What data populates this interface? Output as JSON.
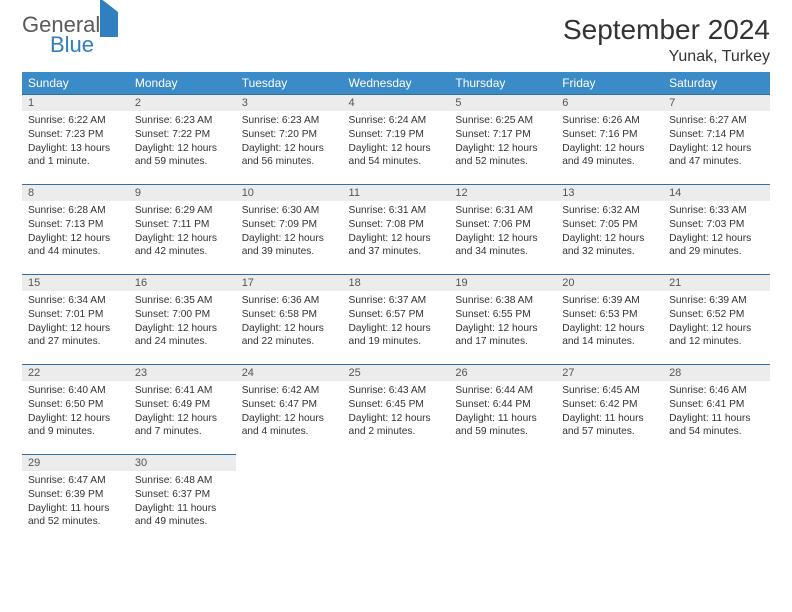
{
  "brand": {
    "part1": "General",
    "part2": "Blue",
    "part1_color": "#5a5a5a",
    "part2_color": "#2f7fc1"
  },
  "title": "September 2024",
  "location": "Yunak, Turkey",
  "colors": {
    "header_bg": "#3b8bc8",
    "header_fg": "#ffffff",
    "daynum_bg": "#ececec",
    "cell_border": "#2f6fa8"
  },
  "weekdays": [
    "Sunday",
    "Monday",
    "Tuesday",
    "Wednesday",
    "Thursday",
    "Friday",
    "Saturday"
  ],
  "weeks": [
    [
      {
        "day": "1",
        "sunrise": "6:22 AM",
        "sunset": "7:23 PM",
        "daylight": "13 hours and 1 minute."
      },
      {
        "day": "2",
        "sunrise": "6:23 AM",
        "sunset": "7:22 PM",
        "daylight": "12 hours and 59 minutes."
      },
      {
        "day": "3",
        "sunrise": "6:23 AM",
        "sunset": "7:20 PM",
        "daylight": "12 hours and 56 minutes."
      },
      {
        "day": "4",
        "sunrise": "6:24 AM",
        "sunset": "7:19 PM",
        "daylight": "12 hours and 54 minutes."
      },
      {
        "day": "5",
        "sunrise": "6:25 AM",
        "sunset": "7:17 PM",
        "daylight": "12 hours and 52 minutes."
      },
      {
        "day": "6",
        "sunrise": "6:26 AM",
        "sunset": "7:16 PM",
        "daylight": "12 hours and 49 minutes."
      },
      {
        "day": "7",
        "sunrise": "6:27 AM",
        "sunset": "7:14 PM",
        "daylight": "12 hours and 47 minutes."
      }
    ],
    [
      {
        "day": "8",
        "sunrise": "6:28 AM",
        "sunset": "7:13 PM",
        "daylight": "12 hours and 44 minutes."
      },
      {
        "day": "9",
        "sunrise": "6:29 AM",
        "sunset": "7:11 PM",
        "daylight": "12 hours and 42 minutes."
      },
      {
        "day": "10",
        "sunrise": "6:30 AM",
        "sunset": "7:09 PM",
        "daylight": "12 hours and 39 minutes."
      },
      {
        "day": "11",
        "sunrise": "6:31 AM",
        "sunset": "7:08 PM",
        "daylight": "12 hours and 37 minutes."
      },
      {
        "day": "12",
        "sunrise": "6:31 AM",
        "sunset": "7:06 PM",
        "daylight": "12 hours and 34 minutes."
      },
      {
        "day": "13",
        "sunrise": "6:32 AM",
        "sunset": "7:05 PM",
        "daylight": "12 hours and 32 minutes."
      },
      {
        "day": "14",
        "sunrise": "6:33 AM",
        "sunset": "7:03 PM",
        "daylight": "12 hours and 29 minutes."
      }
    ],
    [
      {
        "day": "15",
        "sunrise": "6:34 AM",
        "sunset": "7:01 PM",
        "daylight": "12 hours and 27 minutes."
      },
      {
        "day": "16",
        "sunrise": "6:35 AM",
        "sunset": "7:00 PM",
        "daylight": "12 hours and 24 minutes."
      },
      {
        "day": "17",
        "sunrise": "6:36 AM",
        "sunset": "6:58 PM",
        "daylight": "12 hours and 22 minutes."
      },
      {
        "day": "18",
        "sunrise": "6:37 AM",
        "sunset": "6:57 PM",
        "daylight": "12 hours and 19 minutes."
      },
      {
        "day": "19",
        "sunrise": "6:38 AM",
        "sunset": "6:55 PM",
        "daylight": "12 hours and 17 minutes."
      },
      {
        "day": "20",
        "sunrise": "6:39 AM",
        "sunset": "6:53 PM",
        "daylight": "12 hours and 14 minutes."
      },
      {
        "day": "21",
        "sunrise": "6:39 AM",
        "sunset": "6:52 PM",
        "daylight": "12 hours and 12 minutes."
      }
    ],
    [
      {
        "day": "22",
        "sunrise": "6:40 AM",
        "sunset": "6:50 PM",
        "daylight": "12 hours and 9 minutes."
      },
      {
        "day": "23",
        "sunrise": "6:41 AM",
        "sunset": "6:49 PM",
        "daylight": "12 hours and 7 minutes."
      },
      {
        "day": "24",
        "sunrise": "6:42 AM",
        "sunset": "6:47 PM",
        "daylight": "12 hours and 4 minutes."
      },
      {
        "day": "25",
        "sunrise": "6:43 AM",
        "sunset": "6:45 PM",
        "daylight": "12 hours and 2 minutes."
      },
      {
        "day": "26",
        "sunrise": "6:44 AM",
        "sunset": "6:44 PM",
        "daylight": "11 hours and 59 minutes."
      },
      {
        "day": "27",
        "sunrise": "6:45 AM",
        "sunset": "6:42 PM",
        "daylight": "11 hours and 57 minutes."
      },
      {
        "day": "28",
        "sunrise": "6:46 AM",
        "sunset": "6:41 PM",
        "daylight": "11 hours and 54 minutes."
      }
    ],
    [
      {
        "day": "29",
        "sunrise": "6:47 AM",
        "sunset": "6:39 PM",
        "daylight": "11 hours and 52 minutes."
      },
      {
        "day": "30",
        "sunrise": "6:48 AM",
        "sunset": "6:37 PM",
        "daylight": "11 hours and 49 minutes."
      },
      null,
      null,
      null,
      null,
      null
    ]
  ],
  "labels": {
    "sunrise": "Sunrise:",
    "sunset": "Sunset:",
    "daylight": "Daylight:"
  }
}
